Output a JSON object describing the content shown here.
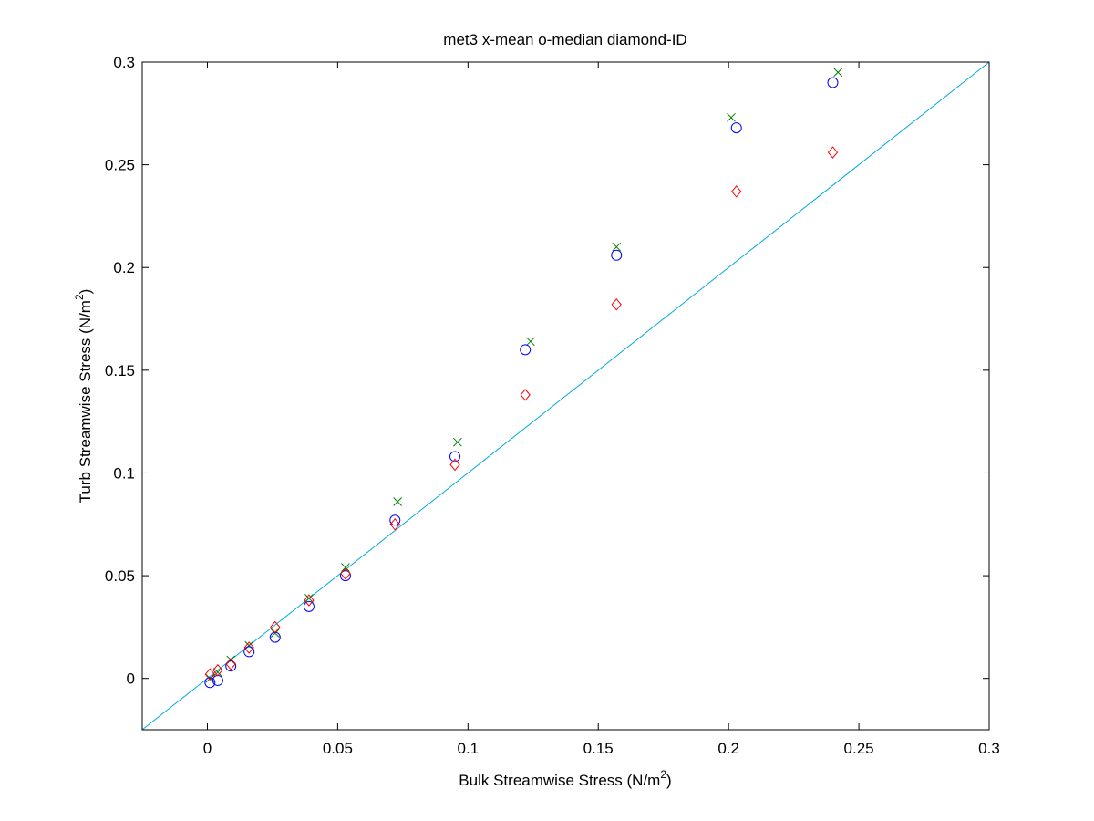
{
  "chart_data": {
    "type": "scatter",
    "title": "met3  x-mean  o-median  diamond-ID",
    "xlabel": {
      "main": "Bulk Streamwise Stress (N/m",
      "sup": "2",
      "tail": ")"
    },
    "ylabel": {
      "main": "Turb Streamwise Stress (N/m",
      "sup": "2",
      "tail": ")"
    },
    "xlim": [
      -0.025,
      0.3
    ],
    "ylim": [
      -0.025,
      0.3
    ],
    "xticks": [
      0,
      0.05,
      0.1,
      0.15,
      0.2,
      0.25,
      0.3
    ],
    "yticks": [
      0,
      0.05,
      0.1,
      0.15,
      0.2,
      0.25,
      0.3
    ],
    "xtick_labels": [
      "0",
      "0.05",
      "0.1",
      "0.15",
      "0.2",
      "0.25",
      "0.3"
    ],
    "ytick_labels": [
      "0",
      "0.05",
      "0.1",
      "0.15",
      "0.2",
      "0.25",
      "0.3"
    ],
    "grid": false,
    "reference_line": {
      "kind": "y=x",
      "color": "#00aadd"
    },
    "series": [
      {
        "marker": "x",
        "color": "#008000",
        "points": [
          [
            0.001,
            0.0
          ],
          [
            0.004,
            0.003
          ],
          [
            0.009,
            0.009
          ],
          [
            0.016,
            0.016
          ],
          [
            0.026,
            0.022
          ],
          [
            0.039,
            0.039
          ],
          [
            0.053,
            0.054
          ],
          [
            0.073,
            0.086
          ],
          [
            0.096,
            0.115
          ],
          [
            0.124,
            0.164
          ],
          [
            0.157,
            0.21
          ],
          [
            0.201,
            0.273
          ],
          [
            0.242,
            0.295
          ]
        ]
      },
      {
        "marker": "circle",
        "color": "#0000ff",
        "points": [
          [
            0.001,
            -0.002
          ],
          [
            0.004,
            -0.001
          ],
          [
            0.009,
            0.006
          ],
          [
            0.016,
            0.013
          ],
          [
            0.026,
            0.02
          ],
          [
            0.039,
            0.035
          ],
          [
            0.053,
            0.05
          ],
          [
            0.072,
            0.077
          ],
          [
            0.095,
            0.108
          ],
          [
            0.122,
            0.16
          ],
          [
            0.157,
            0.206
          ],
          [
            0.203,
            0.268
          ],
          [
            0.24,
            0.29
          ]
        ]
      },
      {
        "marker": "diamond",
        "color": "#ff0000",
        "points": [
          [
            0.001,
            0.002
          ],
          [
            0.004,
            0.004
          ],
          [
            0.009,
            0.007
          ],
          [
            0.016,
            0.015
          ],
          [
            0.026,
            0.025
          ],
          [
            0.039,
            0.038
          ],
          [
            0.053,
            0.051
          ],
          [
            0.072,
            0.075
          ],
          [
            0.095,
            0.104
          ],
          [
            0.122,
            0.138
          ],
          [
            0.157,
            0.182
          ],
          [
            0.203,
            0.237
          ],
          [
            0.24,
            0.256
          ]
        ]
      }
    ]
  }
}
